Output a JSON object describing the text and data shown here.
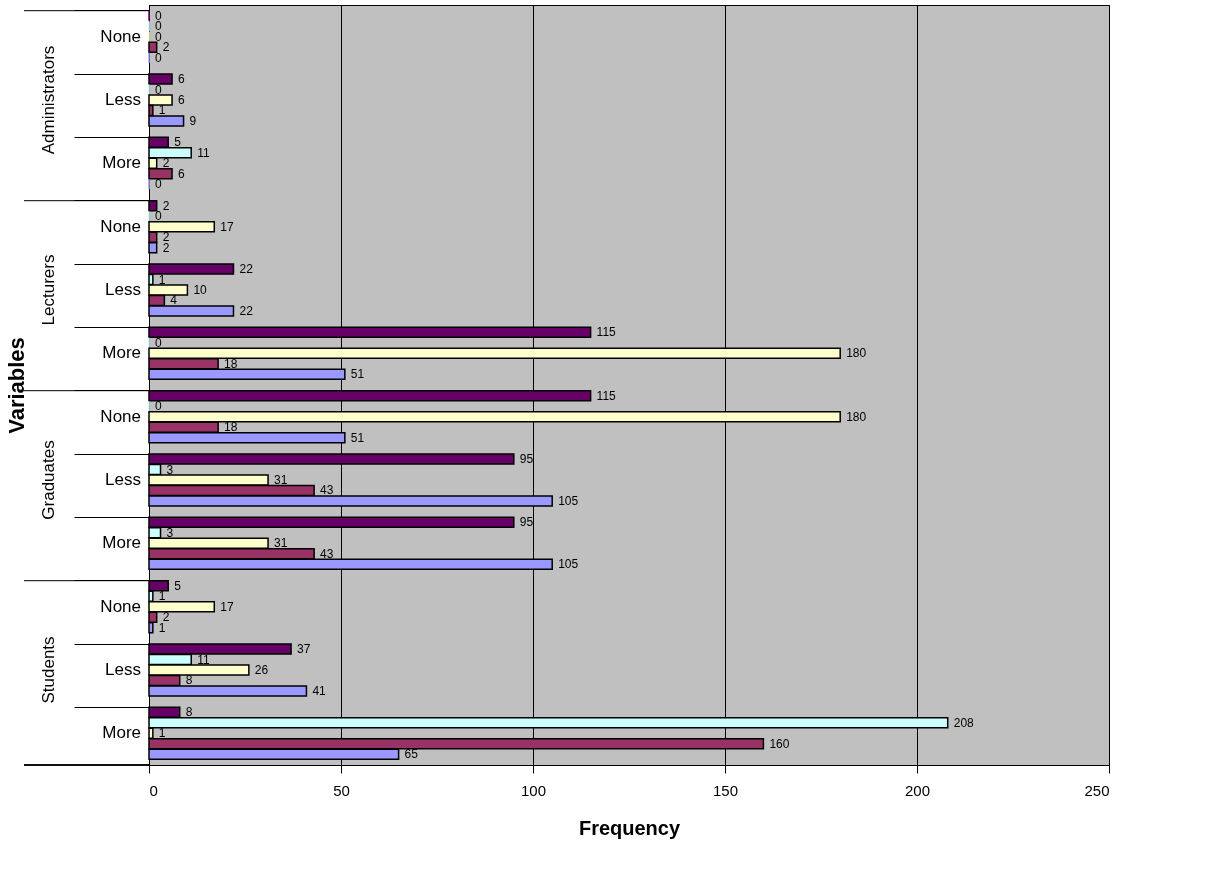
{
  "chart_data": {
    "type": "bar",
    "orientation": "horizontal",
    "xlabel": "Frequency",
    "ylabel": "Variables",
    "categories": [
      "None",
      "Less",
      "More",
      "None",
      "Less",
      "More",
      "None",
      "Less",
      "More",
      "None",
      "Less",
      "More"
    ],
    "annotations": [
      "Administrators",
      "Lecturers",
      "Graduates",
      "Students"
    ],
    "series": [
      {
        "color": "#660066",
        "values": [
          0,
          6,
          5,
          2,
          22,
          115,
          115,
          95,
          95,
          5,
          37,
          8
        ]
      },
      {
        "color": "#ccffff",
        "values": [
          0,
          0,
          11,
          0,
          1,
          0,
          0,
          3,
          3,
          1,
          11,
          208
        ]
      },
      {
        "color": "#ffffcc",
        "values": [
          0,
          6,
          2,
          17,
          10,
          180,
          180,
          31,
          31,
          17,
          26,
          1
        ]
      },
      {
        "color": "#993366",
        "values": [
          2,
          1,
          6,
          2,
          4,
          18,
          18,
          43,
          43,
          2,
          8,
          160
        ]
      },
      {
        "color": "#9999ff",
        "values": [
          0,
          9,
          0,
          2,
          22,
          51,
          51,
          105,
          105,
          1,
          41,
          65
        ]
      }
    ],
    "xlim": [
      0,
      250
    ],
    "xticks": [
      0,
      50,
      100,
      150,
      200,
      250
    ],
    "grid": "x",
    "data_labels": true,
    "legend": false
  }
}
